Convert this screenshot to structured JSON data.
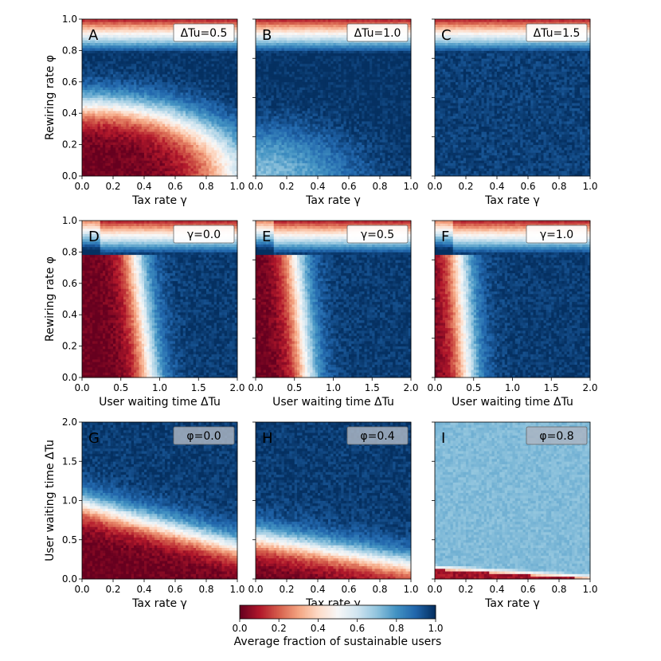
{
  "colorbar": {
    "label": "Average fraction of sustainable users",
    "ticks": [
      "0.0",
      "0.2",
      "0.4",
      "0.6",
      "0.8",
      "1.0"
    ],
    "colormap": [
      "#67001f",
      "#b2182b",
      "#d6604d",
      "#f4a582",
      "#fddbc7",
      "#f7f7f7",
      "#d1e5f0",
      "#92c5de",
      "#4393c3",
      "#2166ac",
      "#053061"
    ]
  },
  "chart_data": [
    {
      "type": "heatmap",
      "panel": "A",
      "box_label": "ΔTu=0.5",
      "title_box": "light",
      "xlabel": "Tax rate γ",
      "ylabel": "Rewiring rate φ",
      "xticks": [
        "0.0",
        "0.2",
        "0.4",
        "0.6",
        "0.8",
        "1.0"
      ],
      "yticks": [
        "0.0",
        "0.2",
        "0.4",
        "0.6",
        "0.8",
        "1.0"
      ],
      "xlim": [
        0,
        1
      ],
      "ylim": [
        0,
        1
      ],
      "model": "A"
    },
    {
      "type": "heatmap",
      "panel": "B",
      "box_label": "ΔTu=1.0",
      "title_box": "light",
      "xlabel": "Tax rate γ",
      "ylabel": "",
      "xticks": [
        "0.0",
        "0.2",
        "0.4",
        "0.6",
        "0.8",
        "1.0"
      ],
      "yticks": [],
      "xlim": [
        0,
        1
      ],
      "ylim": [
        0,
        1
      ],
      "model": "B"
    },
    {
      "type": "heatmap",
      "panel": "C",
      "box_label": "ΔTu=1.5",
      "title_box": "light",
      "xlabel": "Tax rate γ",
      "ylabel": "",
      "xticks": [
        "0.0",
        "0.2",
        "0.4",
        "0.6",
        "0.8",
        "1.0"
      ],
      "yticks": [],
      "xlim": [
        0,
        1
      ],
      "ylim": [
        0,
        1
      ],
      "model": "C"
    },
    {
      "type": "heatmap",
      "panel": "D",
      "box_label": "γ=0.0",
      "title_box": "light",
      "xlabel": "User waiting time ΔTu",
      "ylabel": "Rewiring rate φ",
      "xticks": [
        "0.0",
        "0.5",
        "1.0",
        "1.5",
        "2.0"
      ],
      "yticks": [
        "0.0",
        "0.2",
        "0.4",
        "0.6",
        "0.8",
        "1.0"
      ],
      "xlim": [
        0,
        2
      ],
      "ylim": [
        0,
        1
      ],
      "model": "D",
      "boundary_slope": -3.8,
      "boundary_x0": 0.88
    },
    {
      "type": "heatmap",
      "panel": "E",
      "box_label": "γ=0.5",
      "title_box": "light",
      "xlabel": "User waiting time ΔTu",
      "ylabel": "",
      "xticks": [
        "0.0",
        "0.5",
        "1.0",
        "1.5",
        "2.0"
      ],
      "yticks": [],
      "xlim": [
        0,
        2
      ],
      "ylim": [
        0,
        1
      ],
      "model": "D",
      "boundary_slope": -4.8,
      "boundary_x0": 0.66
    },
    {
      "type": "heatmap",
      "panel": "F",
      "box_label": "γ=1.0",
      "title_box": "light",
      "xlabel": "User waiting time ΔTu",
      "ylabel": "",
      "xticks": [
        "0.0",
        "0.5",
        "1.0",
        "1.5",
        "2.0"
      ],
      "yticks": [],
      "xlim": [
        0,
        2
      ],
      "ylim": [
        0,
        1
      ],
      "model": "D",
      "boundary_slope": -7.0,
      "boundary_x0": 0.42
    },
    {
      "type": "heatmap",
      "panel": "G",
      "box_label": "φ=0.0",
      "title_box": "dark",
      "xlabel": "Tax rate γ",
      "ylabel": "User waiting time ΔTu",
      "xticks": [
        "0.0",
        "0.2",
        "0.4",
        "0.6",
        "0.8",
        "1.0"
      ],
      "yticks": [
        "0.0",
        "0.5",
        "1.0",
        "1.5",
        "2.0"
      ],
      "xlim": [
        0,
        1
      ],
      "ylim": [
        0,
        2
      ],
      "model": "G",
      "boundary_start": 0.95,
      "boundary_end": 0.4
    },
    {
      "type": "heatmap",
      "panel": "H",
      "box_label": "φ=0.4",
      "title_box": "dark",
      "xlabel": "Tax rate γ",
      "ylabel": "",
      "xticks": [
        "0.0",
        "0.2",
        "0.4",
        "0.6",
        "0.8",
        "1.0"
      ],
      "yticks": [],
      "xlim": [
        0,
        1
      ],
      "ylim": [
        0,
        2
      ],
      "model": "G",
      "boundary_start": 0.52,
      "boundary_end": 0.17
    },
    {
      "type": "heatmap",
      "panel": "I",
      "box_label": "φ=0.8",
      "title_box": "dark",
      "xlabel": "Tax rate γ",
      "ylabel": "",
      "xticks": [
        "0.0",
        "0.2",
        "0.4",
        "0.6",
        "0.8",
        "1.0"
      ],
      "yticks": [],
      "xlim": [
        0,
        1
      ],
      "ylim": [
        0,
        2
      ],
      "model": "I"
    }
  ]
}
